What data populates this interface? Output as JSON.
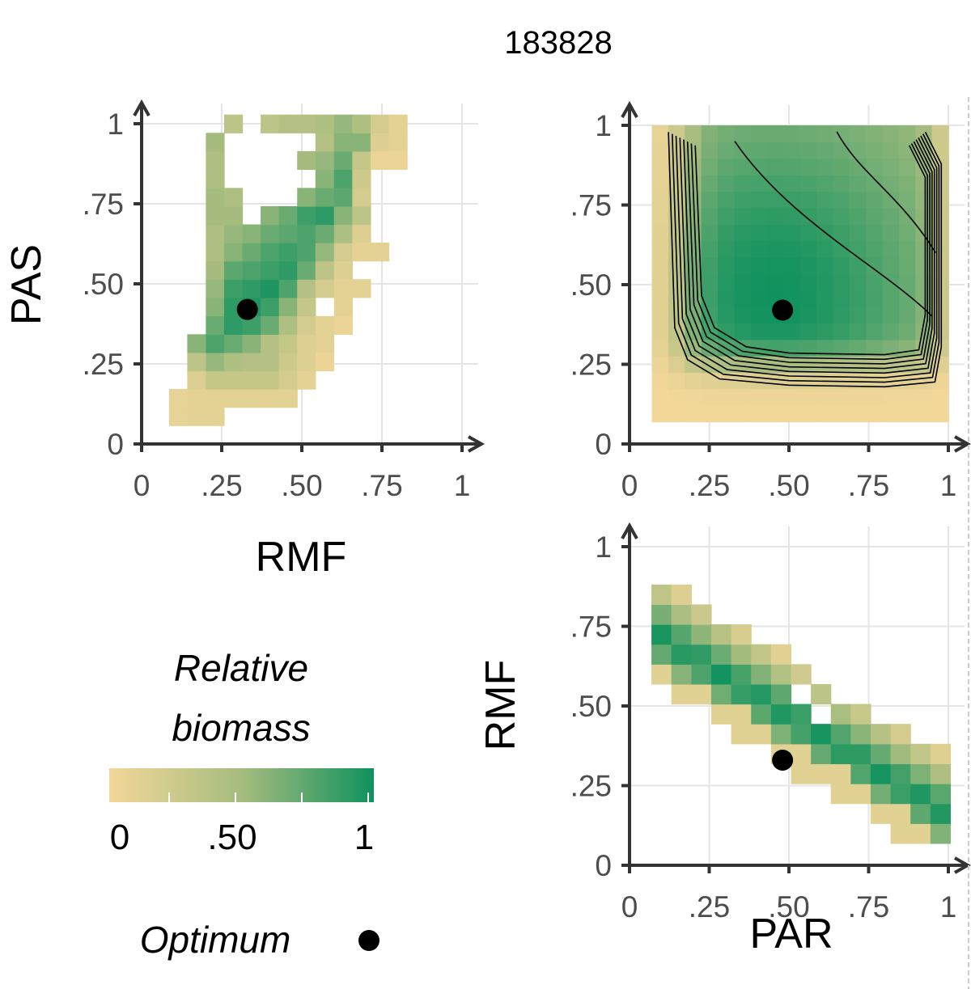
{
  "title": "183828",
  "colors": {
    "low": "#f3d799",
    "mid": "#a6bc7f",
    "high": "#10925e",
    "grid": "#e5e5e5",
    "axis": "#333333",
    "contour": "#000000",
    "optimum": "#000000"
  },
  "legend": {
    "title_line1": "Relative",
    "title_line2": "biomass",
    "ticks": [
      "0",
      ".50",
      "1"
    ],
    "optimum_label": "Optimum"
  },
  "chart_data": [
    {
      "type": "heatmap",
      "id": "rmf_pas",
      "xlabel": "RMF",
      "ylabel": "PAS",
      "xlim": [
        0,
        1
      ],
      "ylim": [
        0,
        1
      ],
      "xticks": [
        "0",
        ".25",
        ".50",
        ".75",
        "1"
      ],
      "yticks": [
        "0",
        ".25",
        ".50",
        ".75",
        "1"
      ],
      "grid": true,
      "cell": 0.0571,
      "cells": [
        [
          0.114,
          0.086,
          0.08
        ],
        [
          0.171,
          0.086,
          0.1
        ],
        [
          0.229,
          0.086,
          0.1
        ],
        [
          0.114,
          0.143,
          0.08
        ],
        [
          0.171,
          0.143,
          0.1
        ],
        [
          0.229,
          0.143,
          0.1
        ],
        [
          0.286,
          0.143,
          0.1
        ],
        [
          0.343,
          0.143,
          0.1
        ],
        [
          0.4,
          0.143,
          0.1
        ],
        [
          0.457,
          0.143,
          0.1
        ],
        [
          0.171,
          0.2,
          0.15
        ],
        [
          0.229,
          0.2,
          0.3
        ],
        [
          0.286,
          0.2,
          0.3
        ],
        [
          0.343,
          0.2,
          0.3
        ],
        [
          0.4,
          0.2,
          0.3
        ],
        [
          0.457,
          0.2,
          0.2
        ],
        [
          0.514,
          0.2,
          0.1
        ],
        [
          0.171,
          0.257,
          0.35
        ],
        [
          0.229,
          0.257,
          0.55
        ],
        [
          0.286,
          0.257,
          0.45
        ],
        [
          0.343,
          0.257,
          0.4
        ],
        [
          0.4,
          0.257,
          0.4
        ],
        [
          0.457,
          0.257,
          0.25
        ],
        [
          0.514,
          0.257,
          0.15
        ],
        [
          0.171,
          0.314,
          0.6
        ],
        [
          0.229,
          0.314,
          0.8
        ],
        [
          0.286,
          0.314,
          0.7
        ],
        [
          0.343,
          0.314,
          0.6
        ],
        [
          0.4,
          0.314,
          0.4
        ],
        [
          0.457,
          0.314,
          0.3
        ],
        [
          0.514,
          0.314,
          0.15
        ],
        [
          0.229,
          0.371,
          0.7
        ],
        [
          0.286,
          0.371,
          0.9
        ],
        [
          0.343,
          0.371,
          0.85
        ],
        [
          0.4,
          0.371,
          0.7
        ],
        [
          0.457,
          0.371,
          0.45
        ],
        [
          0.514,
          0.371,
          0.2
        ],
        [
          0.229,
          0.429,
          0.6
        ],
        [
          0.286,
          0.429,
          0.9
        ],
        [
          0.343,
          0.429,
          0.95
        ],
        [
          0.4,
          0.429,
          0.85
        ],
        [
          0.457,
          0.429,
          0.6
        ],
        [
          0.514,
          0.429,
          0.3
        ],
        [
          0.229,
          0.486,
          0.55
        ],
        [
          0.286,
          0.486,
          0.85
        ],
        [
          0.343,
          0.486,
          0.9
        ],
        [
          0.4,
          0.486,
          0.95
        ],
        [
          0.457,
          0.486,
          0.8
        ],
        [
          0.514,
          0.486,
          0.4
        ],
        [
          0.571,
          0.486,
          0.2
        ],
        [
          0.229,
          0.543,
          0.5
        ],
        [
          0.286,
          0.543,
          0.75
        ],
        [
          0.343,
          0.543,
          0.8
        ],
        [
          0.4,
          0.543,
          0.85
        ],
        [
          0.457,
          0.543,
          0.9
        ],
        [
          0.514,
          0.543,
          0.7
        ],
        [
          0.571,
          0.543,
          0.35
        ],
        [
          0.629,
          0.543,
          0.15
        ],
        [
          0.229,
          0.6,
          0.45
        ],
        [
          0.286,
          0.6,
          0.6
        ],
        [
          0.343,
          0.6,
          0.7
        ],
        [
          0.4,
          0.6,
          0.8
        ],
        [
          0.457,
          0.6,
          0.85
        ],
        [
          0.514,
          0.6,
          0.8
        ],
        [
          0.571,
          0.6,
          0.55
        ],
        [
          0.629,
          0.6,
          0.2
        ],
        [
          0.229,
          0.657,
          0.45
        ],
        [
          0.286,
          0.657,
          0.55
        ],
        [
          0.343,
          0.657,
          0.6
        ],
        [
          0.4,
          0.657,
          0.7
        ],
        [
          0.457,
          0.657,
          0.75
        ],
        [
          0.514,
          0.657,
          0.8
        ],
        [
          0.571,
          0.657,
          0.7
        ],
        [
          0.629,
          0.657,
          0.45
        ],
        [
          0.686,
          0.657,
          0.15
        ],
        [
          0.229,
          0.714,
          0.5
        ],
        [
          0.286,
          0.714,
          0.5
        ],
        [
          0.4,
          0.714,
          0.6
        ],
        [
          0.457,
          0.714,
          0.7
        ],
        [
          0.514,
          0.714,
          0.85
        ],
        [
          0.571,
          0.714,
          0.9
        ],
        [
          0.629,
          0.714,
          0.6
        ],
        [
          0.686,
          0.714,
          0.35
        ],
        [
          0.229,
          0.771,
          0.5
        ],
        [
          0.286,
          0.771,
          0.45
        ],
        [
          0.514,
          0.771,
          0.6
        ],
        [
          0.571,
          0.771,
          0.7
        ],
        [
          0.629,
          0.771,
          0.75
        ],
        [
          0.686,
          0.771,
          0.2
        ],
        [
          0.229,
          0.829,
          0.45
        ],
        [
          0.571,
          0.829,
          0.6
        ],
        [
          0.629,
          0.829,
          0.8
        ],
        [
          0.686,
          0.829,
          0.25
        ],
        [
          0.229,
          0.886,
          0.45
        ],
        [
          0.514,
          0.886,
          0.5
        ],
        [
          0.571,
          0.886,
          0.55
        ],
        [
          0.629,
          0.886,
          0.7
        ],
        [
          0.686,
          0.886,
          0.3
        ],
        [
          0.229,
          0.943,
          0.5
        ],
        [
          0.571,
          0.943,
          0.4
        ],
        [
          0.629,
          0.943,
          0.6
        ],
        [
          0.686,
          0.943,
          0.6
        ],
        [
          0.743,
          0.943,
          0.15
        ],
        [
          0.8,
          0.943,
          0.1
        ],
        [
          0.286,
          1.0,
          0.35
        ],
        [
          0.4,
          1.0,
          0.35
        ],
        [
          0.457,
          1.0,
          0.4
        ],
        [
          0.514,
          1.0,
          0.4
        ],
        [
          0.571,
          1.0,
          0.45
        ],
        [
          0.629,
          1.0,
          0.55
        ],
        [
          0.686,
          1.0,
          0.45
        ],
        [
          0.743,
          1.0,
          0.2
        ],
        [
          0.8,
          1.0,
          0.1
        ],
        [
          0.743,
          0.886,
          0.05
        ],
        [
          0.8,
          0.886,
          0.05
        ],
        [
          0.686,
          0.6,
          0.1
        ],
        [
          0.743,
          0.6,
          0.1
        ],
        [
          0.686,
          0.486,
          0.1
        ],
        [
          0.629,
          0.486,
          0.1
        ],
        [
          0.629,
          0.429,
          0.1
        ],
        [
          0.629,
          0.371,
          0.05
        ],
        [
          0.571,
          0.371,
          0.1
        ],
        [
          0.571,
          0.314,
          0.1
        ],
        [
          0.571,
          0.257,
          0.05
        ]
      ],
      "optimum": [
        0.33,
        0.42
      ]
    },
    {
      "type": "heatmap",
      "id": "par_pas",
      "xlabel": "",
      "ylabel": "",
      "xlim": [
        0,
        1
      ],
      "ylim": [
        0,
        1
      ],
      "xticks": [
        "0",
        ".25",
        ".50",
        ".75",
        "1"
      ],
      "yticks": [
        "0",
        ".25",
        ".50",
        ".75",
        "1"
      ],
      "grid": true,
      "surface": "par_pas_smooth",
      "contours": true,
      "optimum": [
        0.48,
        0.42
      ]
    },
    {
      "type": "heatmap",
      "id": "par_rmf",
      "xlabel": "PAR",
      "ylabel": "RMF",
      "xlim": [
        0,
        1
      ],
      "ylim": [
        0,
        1
      ],
      "xticks": [
        "0",
        ".25",
        ".50",
        ".75",
        "1"
      ],
      "yticks": [
        "0",
        ".25",
        ".50",
        ".75",
        "1"
      ],
      "grid": true,
      "cell": 0.0625,
      "optimum": [
        0.48,
        0.33
      ]
    }
  ]
}
